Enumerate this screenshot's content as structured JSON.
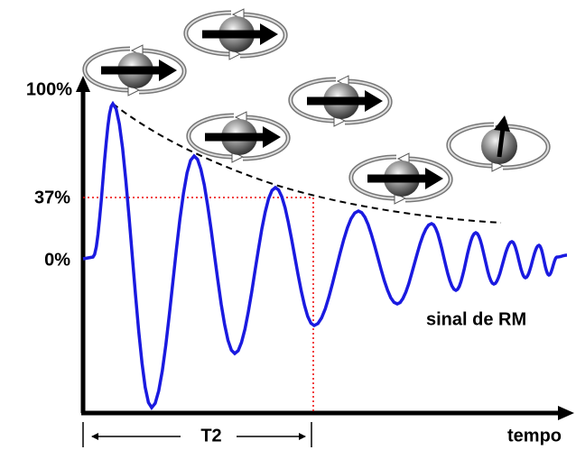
{
  "y_labels": {
    "top": "100%",
    "middle": "37%",
    "bottom": "0%"
  },
  "signal_label": "sinal de RM",
  "x_axis_label": "tempo",
  "interval_label": "T2"
}
